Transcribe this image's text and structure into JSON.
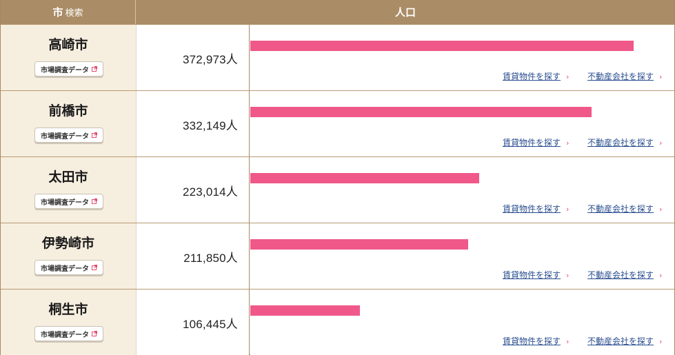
{
  "header": {
    "city_label_strong": "市",
    "city_label_small": "検索",
    "population_label": "人口"
  },
  "rows": [
    {
      "city": "高崎市",
      "market_button": "市場調査データ",
      "population": "372,973人",
      "population_value": 372973,
      "rent_link": "賃貸物件を探す",
      "agent_link": "不動産会社を探す"
    },
    {
      "city": "前橋市",
      "market_button": "市場調査データ",
      "population": "332,149人",
      "population_value": 332149,
      "rent_link": "賃貸物件を探す",
      "agent_link": "不動産会社を探す"
    },
    {
      "city": "太田市",
      "market_button": "市場調査データ",
      "population": "223,014人",
      "population_value": 223014,
      "rent_link": "賃貸物件を探す",
      "agent_link": "不動産会社を探す"
    },
    {
      "city": "伊勢崎市",
      "market_button": "市場調査データ",
      "population": "211,850人",
      "population_value": 211850,
      "rent_link": "賃貸物件を探す",
      "agent_link": "不動産会社を探す"
    },
    {
      "city": "桐生市",
      "market_button": "市場調査データ",
      "population": "106,445人",
      "population_value": 106445,
      "rent_link": "賃貸物件を探す",
      "agent_link": "不動産会社を探す"
    }
  ],
  "icons": {
    "external": "external-link-icon",
    "arrow": "chevron-right-icon"
  },
  "colors": {
    "header_bg": "#aa8c66",
    "city_cell_bg": "#f6eedf",
    "bar": "#f0588a",
    "link": "#2a4e8f",
    "arrow": "#e24a6d"
  }
}
